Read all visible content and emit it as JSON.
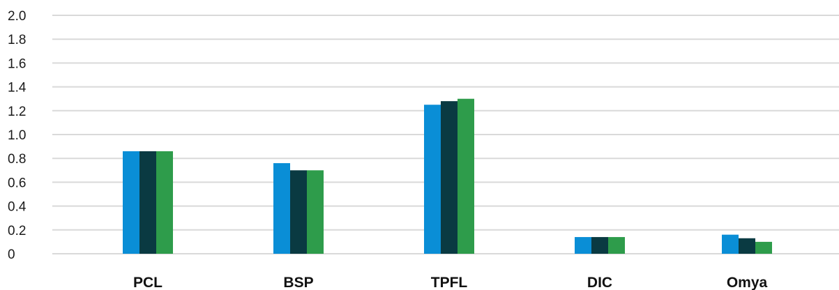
{
  "chart_data": {
    "type": "bar",
    "categories": [
      "PCL",
      "BSP",
      "TPFL",
      "DIC",
      "Omya"
    ],
    "series": [
      {
        "color": "#0a8ed6",
        "values": [
          0.86,
          0.76,
          1.25,
          0.14,
          0.16
        ]
      },
      {
        "color": "#0a3a42",
        "values": [
          0.86,
          0.7,
          1.28,
          0.14,
          0.13
        ]
      },
      {
        "color": "#2e9c4b",
        "values": [
          0.86,
          0.7,
          1.3,
          0.14,
          0.1
        ]
      }
    ],
    "yticks": [
      "0",
      "0.2",
      "0.4",
      "0.6",
      "0.8",
      "1.0",
      "1.2",
      "1.4",
      "1.6",
      "1.8",
      "2.0"
    ],
    "ylim": [
      0,
      2.0
    ],
    "grid": true,
    "legend": "none"
  }
}
